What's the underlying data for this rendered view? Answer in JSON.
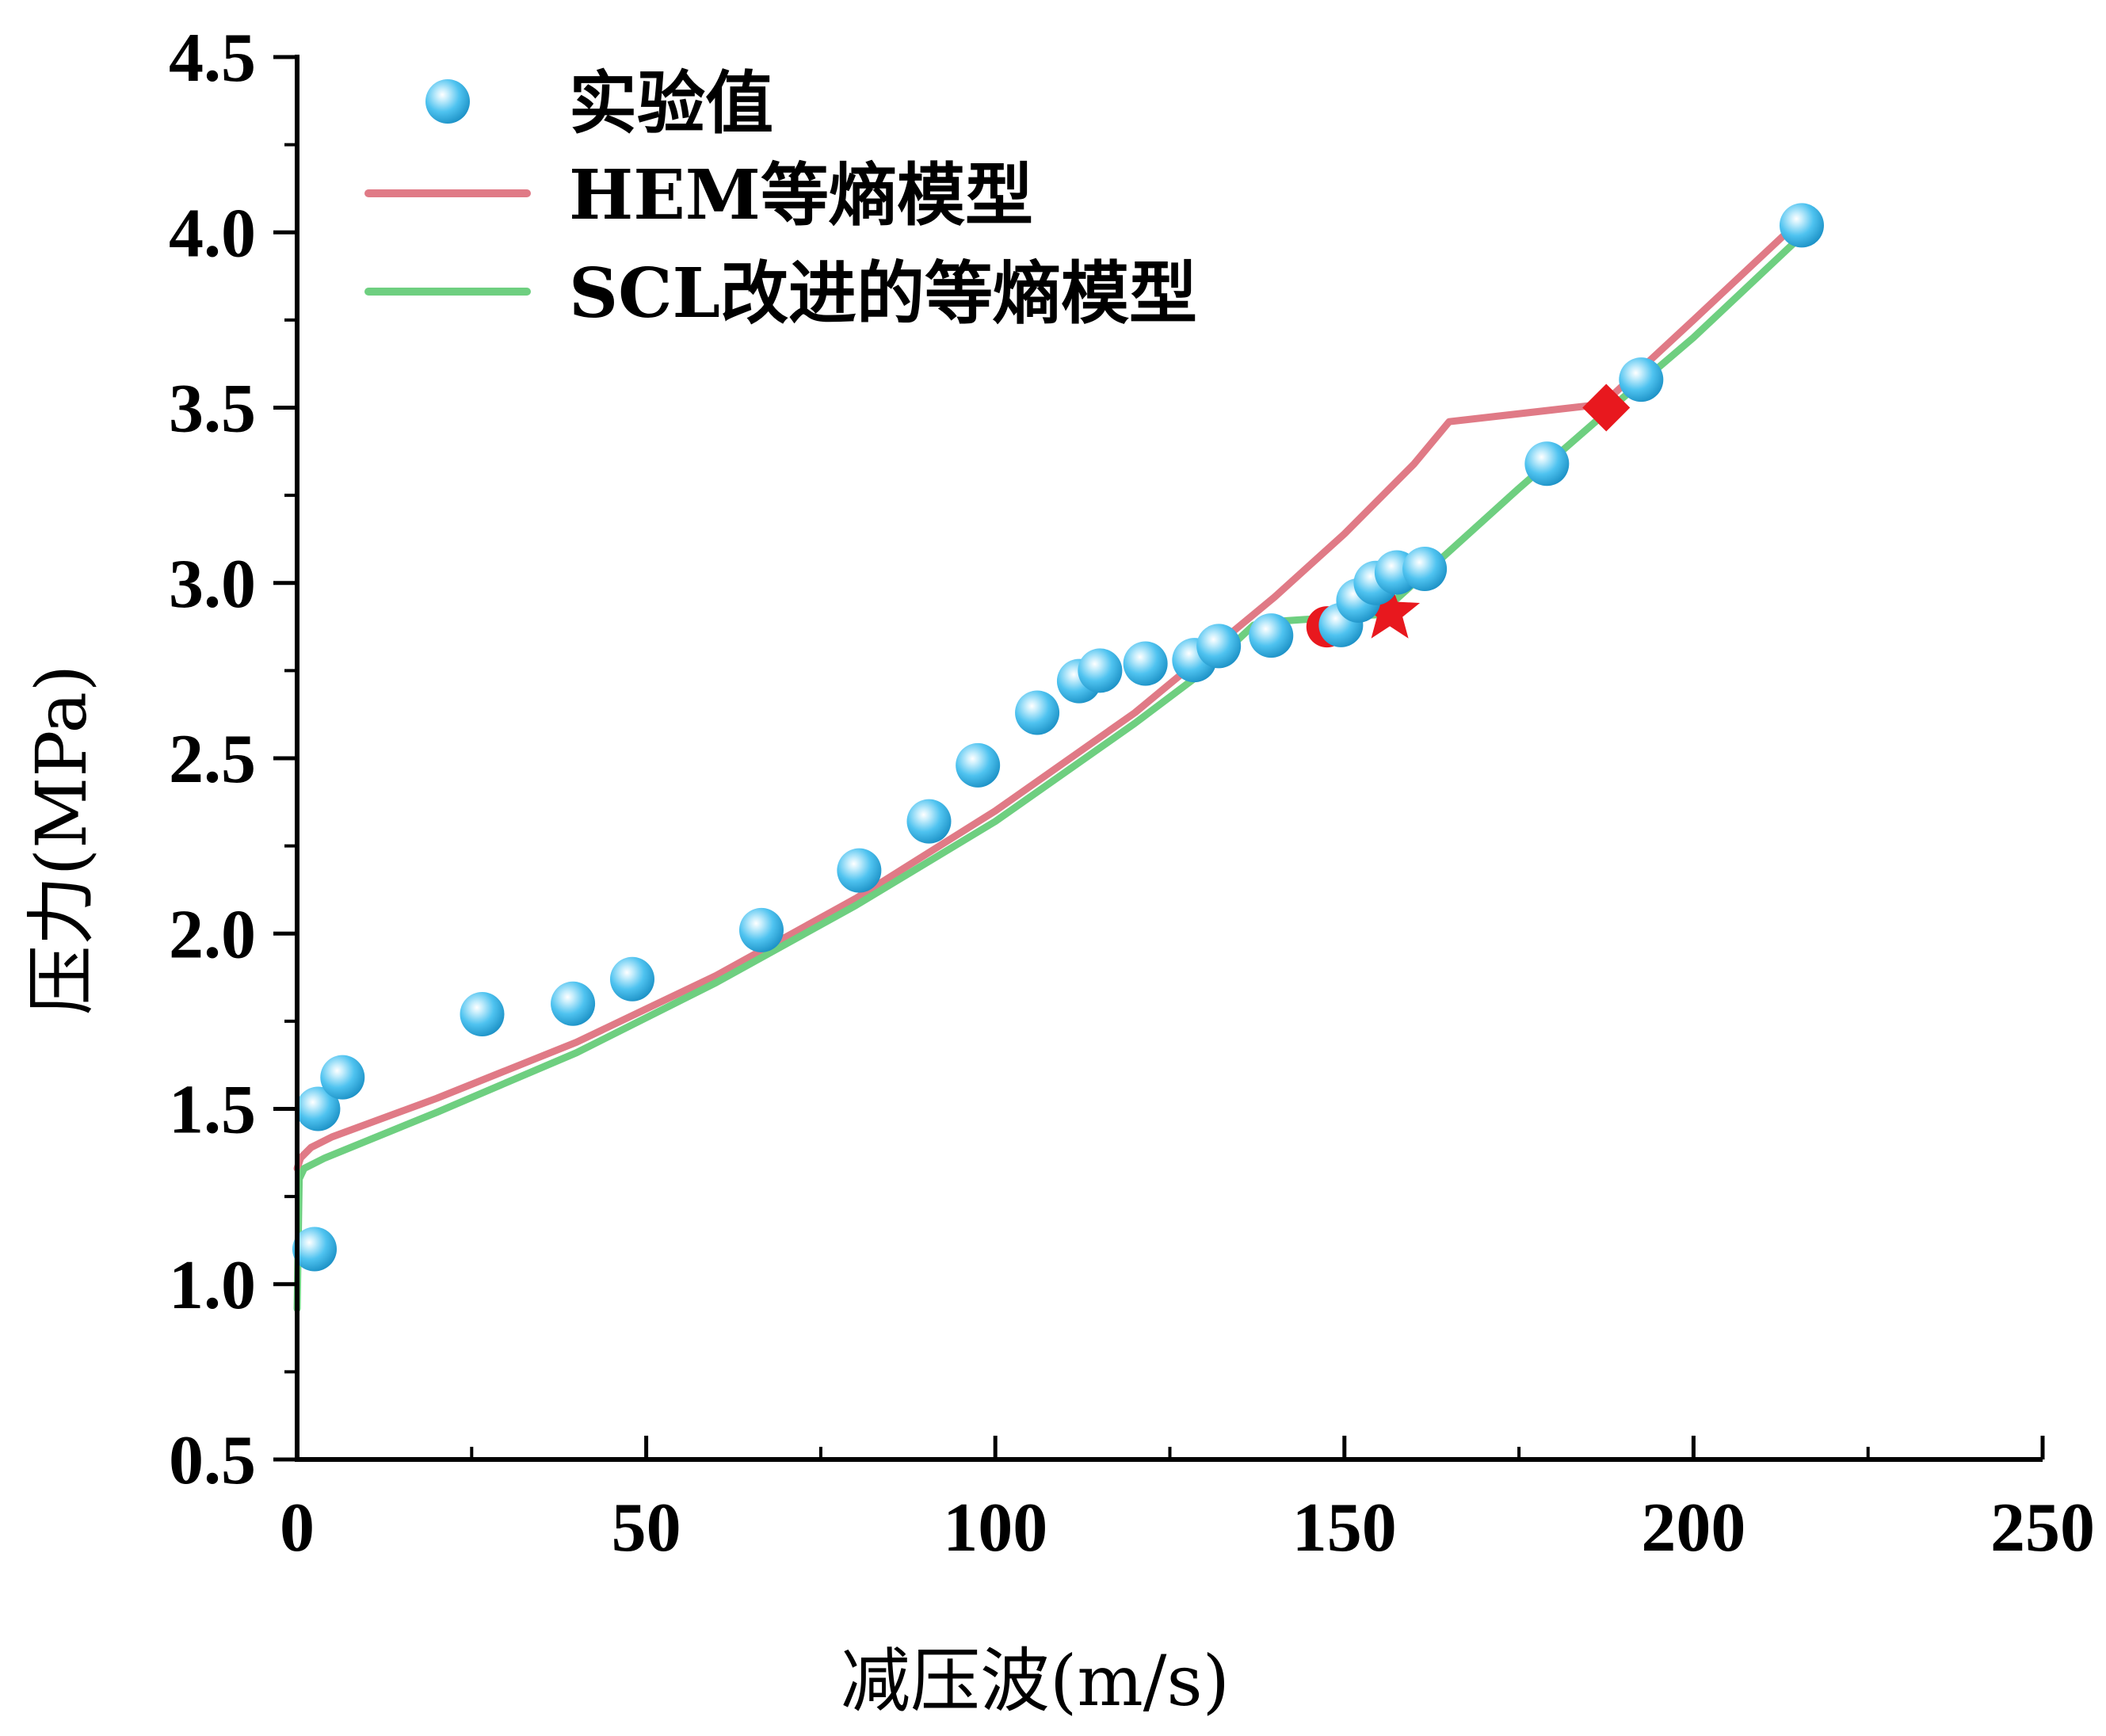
{
  "chart_data": {
    "type": "line",
    "title": "",
    "xlabel": "减压波(m/s)",
    "ylabel": "压力(MPa)",
    "xlim": [
      0,
      250
    ],
    "ylim": [
      0.5,
      4.5
    ],
    "xticks": [
      0,
      50,
      100,
      150,
      200,
      250
    ],
    "xtick_labels": [
      "0",
      "50",
      "100",
      "150",
      "200",
      "250"
    ],
    "yticks": [
      0.5,
      1.0,
      1.5,
      2.0,
      2.5,
      3.0,
      3.5,
      4.0,
      4.5
    ],
    "ytick_labels": [
      "0.5",
      "1.0",
      "1.5",
      "2.0",
      "2.5",
      "3.0",
      "3.5",
      "4.0",
      "4.5"
    ],
    "legend_position": "top-left",
    "series": [
      {
        "name": "实验值",
        "kind": "scatter",
        "color": "#4FC3F0",
        "x": [
          2.5,
          3,
          6.5,
          26.5,
          39.5,
          48,
          66.5,
          80.5,
          90.5,
          97.5,
          106,
          112,
          115,
          121.5,
          128.5,
          132,
          139.5,
          149.5,
          152,
          154.5,
          157.5,
          161.5,
          179,
          192.5,
          215.5
        ],
        "y": [
          1.1,
          1.5,
          1.59,
          1.77,
          1.8,
          1.87,
          2.01,
          2.18,
          2.32,
          2.48,
          2.63,
          2.72,
          2.75,
          2.77,
          2.78,
          2.82,
          2.85,
          2.88,
          2.95,
          3.0,
          3.03,
          3.04,
          3.34,
          3.58,
          4.02
        ]
      },
      {
        "name": "HEM等熵模型",
        "kind": "line",
        "color": "#E07A86",
        "x": [
          0,
          0.5,
          2,
          5,
          20,
          40,
          60,
          80,
          100,
          120,
          140,
          150,
          160,
          165,
          187,
          200,
          215
        ],
        "y": [
          1.33,
          1.36,
          1.39,
          1.42,
          1.53,
          1.69,
          1.88,
          2.1,
          2.35,
          2.63,
          2.96,
          3.14,
          3.34,
          3.46,
          3.51,
          3.75,
          4.03
        ]
      },
      {
        "name": "SCL改进的等熵模型",
        "kind": "line",
        "color": "#6ECF80",
        "x": [
          0,
          0.3,
          1,
          4,
          20,
          40,
          60,
          80,
          100,
          120,
          130,
          137,
          140,
          155,
          160,
          175,
          190,
          200,
          216
        ],
        "y": [
          0.93,
          1.3,
          1.33,
          1.36,
          1.49,
          1.66,
          1.86,
          2.08,
          2.32,
          2.6,
          2.75,
          2.88,
          2.89,
          2.91,
          3.0,
          3.27,
          3.53,
          3.7,
          4.0
        ]
      }
    ],
    "markers": [
      {
        "name": "circle-marker",
        "shape": "circle",
        "color": "#E8181E",
        "x": 147.5,
        "y": 2.875
      },
      {
        "name": "star-marker",
        "shape": "star",
        "color": "#E8181E",
        "x": 156.5,
        "y": 2.915
      },
      {
        "name": "diamond-marker",
        "shape": "diamond",
        "color": "#E8181E",
        "x": 187.5,
        "y": 3.5
      }
    ]
  }
}
